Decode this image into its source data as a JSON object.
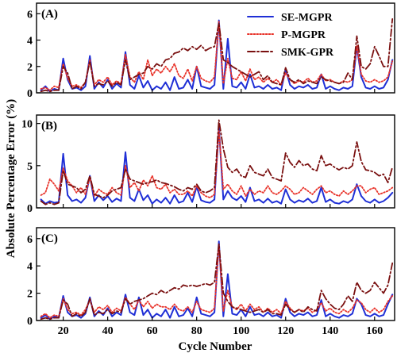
{
  "figure": {
    "xlabel": "Cycle Number",
    "ylabel": "Absolute Percentage Error (%)"
  },
  "legend": {
    "position": "top-right",
    "entries": [
      {
        "name": "SE-MGPR",
        "color": "#1f2fd6",
        "dash": "solid"
      },
      {
        "name": "P-MGPR",
        "color": "#e8332a",
        "dash": "dotted"
      },
      {
        "name": "SMK-GPR",
        "color": "#7a1010",
        "dash": "dash-dot"
      }
    ]
  },
  "chart_data": [
    {
      "type": "line",
      "panel_label": "(A)",
      "xlim": [
        8,
        169
      ],
      "ylim": [
        0,
        6.8
      ],
      "xticks": [
        20,
        40,
        60,
        80,
        100,
        120,
        140,
        160
      ],
      "yticks": [
        0,
        2,
        4,
        6
      ],
      "x": [
        10,
        12,
        14,
        16,
        18,
        20,
        22,
        24,
        26,
        28,
        30,
        32,
        34,
        36,
        38,
        40,
        42,
        44,
        46,
        48,
        50,
        52,
        54,
        56,
        58,
        60,
        62,
        64,
        66,
        68,
        70,
        72,
        74,
        76,
        78,
        80,
        82,
        84,
        86,
        88,
        90,
        92,
        94,
        96,
        98,
        100,
        102,
        104,
        106,
        108,
        110,
        112,
        114,
        116,
        118,
        120,
        122,
        124,
        126,
        128,
        130,
        132,
        134,
        136,
        138,
        140,
        142,
        144,
        146,
        148,
        150,
        152,
        154,
        156,
        158,
        160,
        162,
        164,
        166,
        168
      ],
      "series": [
        {
          "name": "SE-MGPR",
          "values": [
            0.2,
            0.5,
            0.1,
            0.3,
            0.2,
            2.6,
            1.0,
            0.3,
            0.4,
            0.2,
            0.5,
            2.8,
            0.3,
            0.8,
            0.4,
            1.0,
            0.3,
            0.7,
            0.4,
            3.1,
            0.6,
            0.3,
            1.3,
            0.4,
            0.9,
            0.2,
            0.5,
            0.3,
            0.8,
            0.2,
            1.2,
            0.3,
            0.4,
            1.0,
            0.3,
            2.0,
            0.5,
            0.4,
            0.3,
            0.6,
            5.5,
            0.3,
            4.1,
            0.5,
            0.4,
            0.8,
            0.3,
            1.4,
            0.4,
            0.5,
            0.3,
            0.6,
            0.3,
            0.4,
            0.2,
            1.8,
            0.6,
            0.3,
            0.5,
            0.4,
            0.6,
            0.3,
            0.4,
            1.4,
            0.3,
            0.5,
            0.3,
            0.2,
            0.4,
            0.3,
            0.5,
            3.5,
            1.2,
            0.4,
            0.3,
            0.5,
            0.3,
            0.4,
            1.0,
            2.5
          ]
        },
        {
          "name": "P-MGPR",
          "values": [
            0.3,
            0.4,
            0.2,
            0.5,
            0.4,
            2.2,
            1.1,
            0.5,
            0.6,
            0.4,
            0.8,
            2.5,
            0.6,
            1.0,
            0.8,
            1.2,
            0.6,
            0.9,
            0.7,
            2.9,
            1.2,
            0.8,
            1.6,
            1.0,
            2.5,
            1.3,
            1.8,
            1.5,
            2.0,
            1.6,
            2.2,
            1.3,
            1.1,
            1.8,
            0.9,
            2.0,
            1.1,
            0.9,
            0.8,
            1.2,
            5.4,
            0.7,
            2.6,
            1.1,
            1.0,
            1.6,
            0.9,
            1.8,
            1.0,
            1.2,
            0.8,
            1.1,
            0.8,
            1.0,
            0.6,
            1.5,
            1.0,
            0.7,
            0.9,
            0.8,
            1.1,
            0.8,
            0.9,
            1.4,
            0.9,
            1.0,
            0.8,
            0.7,
            0.9,
            0.8,
            1.0,
            3.6,
            1.4,
            0.9,
            0.8,
            1.0,
            0.8,
            0.9,
            1.2,
            2.4
          ]
        },
        {
          "name": "SMK-GPR",
          "values": [
            0.1,
            0.2,
            0.1,
            0.2,
            0.2,
            2.0,
            1.5,
            0.3,
            0.5,
            0.3,
            0.8,
            2.4,
            0.5,
            0.7,
            0.6,
            0.9,
            0.5,
            0.8,
            0.6,
            2.5,
            1.0,
            1.2,
            1.4,
            1.5,
            2.0,
            1.8,
            2.2,
            2.0,
            2.5,
            2.6,
            3.0,
            3.1,
            3.4,
            3.2,
            3.5,
            3.3,
            3.6,
            3.2,
            3.4,
            3.5,
            5.3,
            2.5,
            2.3,
            2.0,
            1.8,
            1.6,
            1.4,
            1.2,
            1.4,
            1.6,
            1.0,
            1.3,
            0.8,
            0.7,
            0.6,
            1.9,
            1.0,
            0.8,
            1.0,
            0.7,
            0.9,
            0.8,
            0.7,
            1.2,
            1.0,
            0.9,
            0.8,
            0.7,
            0.8,
            1.5,
            1.0,
            4.3,
            2.0,
            1.8,
            2.2,
            3.5,
            2.8,
            2.0,
            2.0,
            5.6
          ]
        }
      ]
    },
    {
      "type": "line",
      "panel_label": "(B)",
      "xlim": [
        8,
        169
      ],
      "ylim": [
        0,
        11
      ],
      "xticks": [
        20,
        40,
        60,
        80,
        100,
        120,
        140,
        160
      ],
      "yticks": [
        0,
        5,
        10
      ],
      "x": [
        10,
        12,
        14,
        16,
        18,
        20,
        22,
        24,
        26,
        28,
        30,
        32,
        34,
        36,
        38,
        40,
        42,
        44,
        46,
        48,
        50,
        52,
        54,
        56,
        58,
        60,
        62,
        64,
        66,
        68,
        70,
        72,
        74,
        76,
        78,
        80,
        82,
        84,
        86,
        88,
        90,
        92,
        94,
        96,
        98,
        100,
        102,
        104,
        106,
        108,
        110,
        112,
        114,
        116,
        118,
        120,
        122,
        124,
        126,
        128,
        130,
        132,
        134,
        136,
        138,
        140,
        142,
        144,
        146,
        148,
        150,
        152,
        154,
        156,
        158,
        160,
        162,
        164,
        166,
        168
      ],
      "series": [
        {
          "name": "SE-MGPR",
          "values": [
            1.0,
            0.5,
            0.8,
            0.6,
            0.7,
            6.4,
            1.5,
            0.8,
            1.0,
            0.6,
            1.2,
            3.8,
            0.8,
            1.5,
            0.9,
            1.4,
            0.7,
            1.1,
            0.8,
            6.6,
            1.2,
            0.8,
            2.2,
            0.9,
            1.5,
            0.5,
            1.0,
            0.6,
            1.2,
            0.5,
            1.5,
            0.6,
            0.8,
            1.8,
            0.7,
            2.5,
            0.9,
            0.7,
            0.6,
            1.0,
            9.6,
            1.0,
            2.0,
            1.2,
            0.9,
            1.4,
            0.7,
            2.4,
            0.8,
            1.0,
            0.6,
            1.1,
            0.6,
            0.8,
            0.5,
            2.2,
            1.0,
            0.6,
            0.9,
            0.7,
            1.1,
            0.6,
            0.8,
            2.4,
            0.7,
            1.0,
            0.6,
            0.5,
            0.8,
            0.6,
            1.0,
            2.8,
            1.4,
            0.8,
            0.6,
            1.0,
            0.6,
            0.8,
            1.2,
            1.8
          ]
        },
        {
          "name": "P-MGPR",
          "values": [
            1.5,
            1.8,
            3.4,
            2.8,
            2.0,
            4.7,
            3.2,
            2.6,
            1.8,
            2.4,
            1.6,
            3.6,
            1.4,
            2.2,
            1.8,
            1.6,
            2.4,
            1.8,
            1.5,
            5.0,
            2.4,
            3.0,
            2.0,
            3.3,
            2.6,
            3.8,
            2.4,
            2.2,
            2.8,
            1.8,
            2.2,
            1.6,
            1.6,
            2.0,
            1.4,
            2.6,
            1.8,
            1.4,
            1.2,
            1.6,
            9.2,
            2.2,
            2.8,
            2.0,
            1.6,
            2.6,
            1.4,
            2.2,
            1.6,
            2.0,
            1.8,
            2.6,
            1.8,
            1.6,
            2.0,
            2.6,
            2.2,
            1.6,
            1.8,
            2.4,
            2.0,
            1.6,
            2.2,
            2.6,
            1.8,
            2.0,
            1.6,
            1.4,
            2.0,
            1.6,
            2.0,
            2.6,
            2.6,
            1.8,
            2.2,
            2.4,
            1.6,
            1.8,
            2.0,
            2.4
          ]
        },
        {
          "name": "SMK-GPR",
          "values": [
            0.8,
            0.4,
            0.6,
            0.4,
            0.6,
            4.4,
            2.8,
            2.6,
            2.4,
            1.8,
            2.2,
            3.8,
            1.6,
            1.4,
            1.2,
            1.5,
            2.0,
            2.2,
            2.4,
            4.6,
            3.4,
            3.2,
            3.0,
            2.8,
            3.0,
            3.1,
            3.3,
            3.0,
            2.9,
            2.7,
            2.5,
            2.2,
            2.0,
            2.4,
            2.2,
            2.8,
            2.0,
            1.8,
            2.0,
            2.4,
            10.4,
            7.0,
            4.8,
            4.2,
            4.6,
            3.8,
            3.6,
            5.0,
            4.2,
            4.0,
            3.8,
            4.6,
            3.6,
            3.4,
            3.2,
            6.5,
            5.4,
            4.8,
            5.6,
            5.0,
            5.2,
            4.6,
            4.4,
            6.2,
            5.0,
            5.2,
            4.8,
            4.5,
            4.8,
            4.6,
            5.0,
            7.8,
            5.5,
            4.5,
            4.4,
            4.2,
            3.8,
            4.0,
            3.0,
            4.8
          ]
        }
      ]
    },
    {
      "type": "line",
      "panel_label": "(C)",
      "xlim": [
        8,
        169
      ],
      "ylim": [
        0,
        6.8
      ],
      "xticks": [
        20,
        40,
        60,
        80,
        100,
        120,
        140,
        160
      ],
      "yticks": [
        0,
        2,
        4,
        6
      ],
      "x": [
        10,
        12,
        14,
        16,
        18,
        20,
        22,
        24,
        26,
        28,
        30,
        32,
        34,
        36,
        38,
        40,
        42,
        44,
        46,
        48,
        50,
        52,
        54,
        56,
        58,
        60,
        62,
        64,
        66,
        68,
        70,
        72,
        74,
        76,
        78,
        80,
        82,
        84,
        86,
        88,
        90,
        92,
        94,
        96,
        98,
        100,
        102,
        104,
        106,
        108,
        110,
        112,
        114,
        116,
        118,
        120,
        122,
        124,
        126,
        128,
        130,
        132,
        134,
        136,
        138,
        140,
        142,
        144,
        146,
        148,
        150,
        152,
        154,
        156,
        158,
        160,
        162,
        164,
        166,
        168
      ],
      "series": [
        {
          "name": "SE-MGPR",
          "values": [
            0.2,
            0.4,
            0.1,
            0.3,
            0.2,
            1.8,
            0.6,
            0.3,
            0.4,
            0.2,
            0.5,
            1.7,
            0.3,
            0.7,
            0.4,
            0.9,
            0.3,
            0.6,
            0.4,
            1.9,
            0.6,
            0.4,
            1.7,
            0.4,
            0.8,
            0.2,
            0.5,
            0.3,
            0.8,
            0.2,
            1.0,
            0.3,
            0.4,
            0.9,
            0.3,
            1.7,
            0.5,
            0.4,
            0.3,
            0.6,
            5.8,
            0.3,
            3.4,
            0.5,
            0.4,
            0.8,
            0.3,
            1.0,
            0.4,
            0.5,
            0.3,
            0.6,
            0.3,
            0.4,
            0.2,
            1.6,
            0.6,
            0.3,
            0.5,
            0.4,
            0.6,
            0.3,
            0.4,
            1.5,
            0.3,
            0.5,
            0.3,
            0.2,
            0.4,
            0.3,
            0.5,
            1.6,
            1.2,
            0.4,
            0.3,
            0.5,
            0.3,
            0.4,
            1.2,
            1.9
          ]
        },
        {
          "name": "P-MGPR",
          "values": [
            0.3,
            0.5,
            0.2,
            0.4,
            0.3,
            1.6,
            0.8,
            0.5,
            0.6,
            0.4,
            0.8,
            1.5,
            0.6,
            1.0,
            0.8,
            1.1,
            0.6,
            0.9,
            0.7,
            1.7,
            1.2,
            0.8,
            1.5,
            1.0,
            1.4,
            0.9,
            1.2,
            1.0,
            1.0,
            0.8,
            1.2,
            0.8,
            0.7,
            1.0,
            0.6,
            1.4,
            0.8,
            0.7,
            0.6,
            0.9,
            5.6,
            0.7,
            2.2,
            1.0,
            0.8,
            1.2,
            0.7,
            1.2,
            0.8,
            1.0,
            0.6,
            0.9,
            0.6,
            0.8,
            0.5,
            1.4,
            0.9,
            0.6,
            0.8,
            0.7,
            0.9,
            0.6,
            0.8,
            1.3,
            0.7,
            0.9,
            0.6,
            0.5,
            0.8,
            0.6,
            0.9,
            1.5,
            1.3,
            0.8,
            0.6,
            0.9,
            0.6,
            0.8,
            1.4,
            1.8
          ]
        },
        {
          "name": "SMK-GPR",
          "values": [
            0.1,
            0.2,
            0.1,
            0.2,
            0.2,
            1.5,
            1.2,
            0.3,
            0.5,
            0.3,
            0.6,
            1.6,
            0.4,
            0.6,
            0.5,
            0.8,
            0.5,
            0.7,
            0.6,
            1.6,
            1.2,
            1.4,
            1.5,
            1.6,
            1.8,
            2.0,
            1.9,
            2.2,
            2.0,
            2.2,
            2.4,
            2.3,
            2.6,
            2.5,
            2.6,
            2.5,
            2.6,
            2.7,
            2.6,
            2.8,
            5.6,
            2.0,
            1.4,
            1.0,
            0.9,
            0.8,
            0.7,
            0.6,
            0.7,
            0.8,
            0.6,
            0.8,
            0.5,
            0.5,
            0.4,
            1.2,
            0.8,
            0.6,
            0.8,
            0.6,
            1.0,
            0.8,
            0.7,
            2.2,
            1.6,
            1.2,
            0.9,
            0.8,
            1.2,
            1.8,
            1.4,
            2.8,
            2.2,
            2.0,
            2.2,
            2.8,
            2.4,
            2.0,
            2.6,
            4.2
          ]
        }
      ]
    }
  ]
}
